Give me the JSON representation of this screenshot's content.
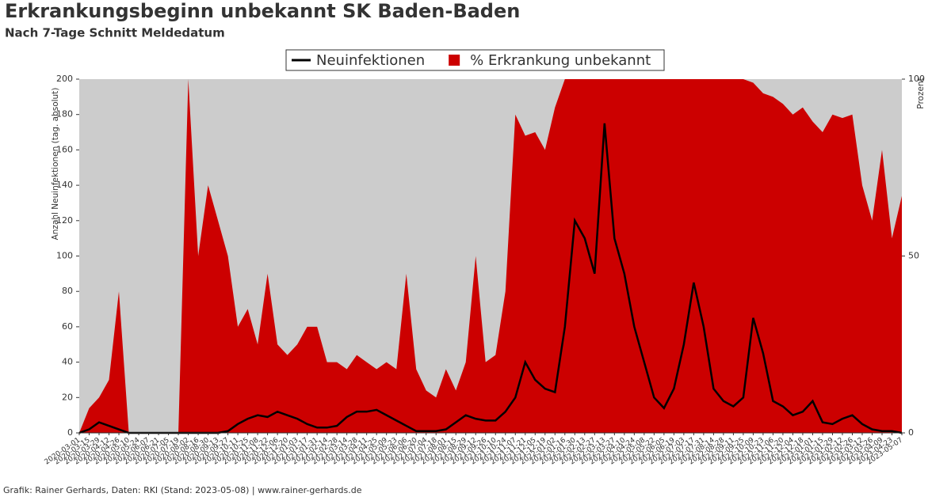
{
  "chart_data": {
    "type": "line-area",
    "title": "Erkrankungsbeginn unbekannt SK Baden-Baden",
    "subtitle": "Nach 7-Tage Schnitt Meldedatum",
    "ylabel": "Anzahl Neuinfektionen (tag. absolut)",
    "y2label": "Prozent",
    "footer": "Grafik: Rainer Gerhards, Daten: RKI (Stand: 2023-05-08) | www.rainer-gerhards.de",
    "legend": "top",
    "categories": [
      "2020-03-01",
      "2020-03-15",
      "2020-03-29",
      "2020-04-12",
      "2020-04-26",
      "2020-05-10",
      "2020-05-24",
      "2020-06-07",
      "2020-06-21",
      "2020-07-05",
      "2020-07-19",
      "2020-08-02",
      "2020-08-16",
      "2020-08-30",
      "2020-09-13",
      "2020-09-27",
      "2020-10-11",
      "2020-10-25",
      "2020-11-08",
      "2020-11-22",
      "2020-12-06",
      "2020-12-20",
      "2021-01-03",
      "2021-01-17",
      "2021-01-31",
      "2021-02-14",
      "2021-02-28",
      "2021-03-14",
      "2021-03-28",
      "2021-04-11",
      "2021-04-25",
      "2021-05-09",
      "2021-05-23",
      "2021-06-06",
      "2021-06-20",
      "2021-07-04",
      "2021-07-18",
      "2021-08-01",
      "2021-08-15",
      "2021-08-29",
      "2021-09-12",
      "2021-09-26",
      "2021-10-10",
      "2021-10-24",
      "2021-11-07",
      "2021-11-21",
      "2021-12-05",
      "2021-12-19",
      "2022-01-02",
      "2022-01-16",
      "2022-01-30",
      "2022-02-13",
      "2022-02-27",
      "2022-03-13",
      "2022-03-27",
      "2022-04-10",
      "2022-04-24",
      "2022-05-08",
      "2022-05-22",
      "2022-06-05",
      "2022-06-19",
      "2022-07-03",
      "2022-07-17",
      "2022-07-31",
      "2022-08-14",
      "2022-08-28",
      "2022-09-11",
      "2022-09-25",
      "2022-10-09",
      "2022-10-23",
      "2022-11-06",
      "2022-11-20",
      "2022-12-04",
      "2022-12-18",
      "2023-01-01",
      "2023-01-15",
      "2023-01-29",
      "2023-02-12",
      "2023-02-26",
      "2023-03-12",
      "2023-03-26",
      "2023-04-09",
      "2023-04-23",
      "2023-05-07"
    ],
    "series": [
      {
        "name": "% Erkrankung unbekannt",
        "color": "#cc0000",
        "kind": "area",
        "axis": "y2",
        "values": [
          0,
          7,
          10,
          15,
          40,
          0,
          0,
          0,
          0,
          0,
          0,
          100,
          50,
          70,
          60,
          50,
          30,
          35,
          25,
          45,
          25,
          22,
          25,
          30,
          30,
          20,
          20,
          18,
          22,
          20,
          18,
          20,
          18,
          45,
          18,
          12,
          10,
          18,
          12,
          20,
          50,
          20,
          22,
          40,
          90,
          84,
          85,
          80,
          92,
          100,
          100,
          100,
          100,
          100,
          100,
          100,
          100,
          100,
          100,
          100,
          100,
          100,
          100,
          100,
          100,
          100,
          100,
          100,
          99,
          96,
          95,
          93,
          90,
          92,
          88,
          85,
          90,
          89,
          90,
          70,
          60,
          80,
          55,
          67
        ]
      },
      {
        "name": "Neuinfektionen",
        "color": "#000000",
        "kind": "line",
        "values": [
          0,
          2,
          6,
          4,
          2,
          0,
          0,
          0,
          0,
          0,
          0,
          0,
          0,
          0,
          0,
          1,
          5,
          8,
          10,
          9,
          12,
          10,
          8,
          5,
          3,
          3,
          4,
          9,
          12,
          12,
          13,
          10,
          7,
          4,
          1,
          1,
          1,
          2,
          6,
          10,
          8,
          7,
          7,
          12,
          20,
          40,
          30,
          25,
          23,
          60,
          120,
          110,
          90,
          175,
          110,
          90,
          60,
          40,
          20,
          14,
          25,
          50,
          85,
          60,
          25,
          18,
          15,
          20,
          65,
          45,
          18,
          15,
          10,
          12,
          18,
          6,
          5,
          8,
          10,
          5,
          2,
          1,
          1,
          0
        ]
      }
    ],
    "ylim": [
      0,
      200
    ],
    "yticks": [
      0,
      20,
      40,
      60,
      80,
      100,
      120,
      140,
      160,
      180,
      200
    ],
    "y2lim": [
      0,
      100
    ],
    "y2ticks": [
      0,
      50,
      100
    ],
    "background": "#cccccc"
  }
}
